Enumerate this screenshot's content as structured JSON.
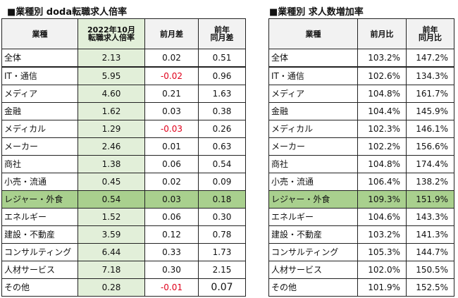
{
  "left": {
    "title": "■業種別 doda転職求人倍率",
    "headers": [
      "業種",
      "2022年10月\n転職求人倍率",
      "前月差",
      "前年\n同月差"
    ],
    "rows": [
      {
        "name": "全体",
        "ratio": "2.13",
        "mom": "0.02",
        "yoy": "0.51"
      },
      {
        "name": "IT・通信",
        "ratio": "5.95",
        "mom": "-0.02",
        "yoy": "0.96"
      },
      {
        "name": "メディア",
        "ratio": "4.60",
        "mom": "0.21",
        "yoy": "1.63"
      },
      {
        "name": "金融",
        "ratio": "1.62",
        "mom": "0.03",
        "yoy": "0.38"
      },
      {
        "name": "メディカル",
        "ratio": "1.29",
        "mom": "-0.03",
        "yoy": "0.26"
      },
      {
        "name": "メーカー",
        "ratio": "2.46",
        "mom": "0.01",
        "yoy": "0.63"
      },
      {
        "name": "商社",
        "ratio": "1.38",
        "mom": "0.06",
        "yoy": "0.54"
      },
      {
        "name": "小売・流通",
        "ratio": "0.45",
        "mom": "0.02",
        "yoy": "0.09"
      },
      {
        "name": "レジャー・外食",
        "ratio": "0.54",
        "mom": "0.03",
        "yoy": "0.18"
      },
      {
        "name": "エネルギー",
        "ratio": "1.52",
        "mom": "0.06",
        "yoy": "0.30"
      },
      {
        "name": "建設・不動産",
        "ratio": "3.59",
        "mom": "0.12",
        "yoy": "0.78"
      },
      {
        "name": "コンサルティング",
        "ratio": "6.44",
        "mom": "0.33",
        "yoy": "1.73"
      },
      {
        "name": "人材サービス",
        "ratio": "7.18",
        "mom": "0.30",
        "yoy": "2.15"
      },
      {
        "name": "その他",
        "ratio": "0.28",
        "mom": "-0.01",
        "yoy": "0.07"
      }
    ]
  },
  "right": {
    "title": "■業種別 求人数増加率",
    "headers": [
      "業種",
      "前月比",
      "前年\n同月比"
    ],
    "rows": [
      {
        "name": "全体",
        "mom": "103.2%",
        "yoy": "147.2%"
      },
      {
        "name": "IT・通信",
        "mom": "102.6%",
        "yoy": "134.3%"
      },
      {
        "name": "メディア",
        "mom": "104.8%",
        "yoy": "161.7%"
      },
      {
        "name": "金融",
        "mom": "104.4%",
        "yoy": "145.9%"
      },
      {
        "name": "メディカル",
        "mom": "102.3%",
        "yoy": "146.1%"
      },
      {
        "name": "メーカー",
        "mom": "102.2%",
        "yoy": "156.6%"
      },
      {
        "name": "商社",
        "mom": "104.8%",
        "yoy": "174.4%"
      },
      {
        "name": "小売・流通",
        "mom": "106.4%",
        "yoy": "138.2%"
      },
      {
        "name": "レジャー・外食",
        "mom": "109.3%",
        "yoy": "151.9%"
      },
      {
        "name": "エネルギー",
        "mom": "104.6%",
        "yoy": "143.3%"
      },
      {
        "name": "建設・不動産",
        "mom": "103.2%",
        "yoy": "141.3%"
      },
      {
        "name": "コンサルティング",
        "mom": "105.3%",
        "yoy": "144.7%"
      },
      {
        "name": "人材サービス",
        "mom": "102.0%",
        "yoy": "150.5%"
      },
      {
        "name": "その他",
        "mom": "101.9%",
        "yoy": "152.5%"
      }
    ]
  }
}
